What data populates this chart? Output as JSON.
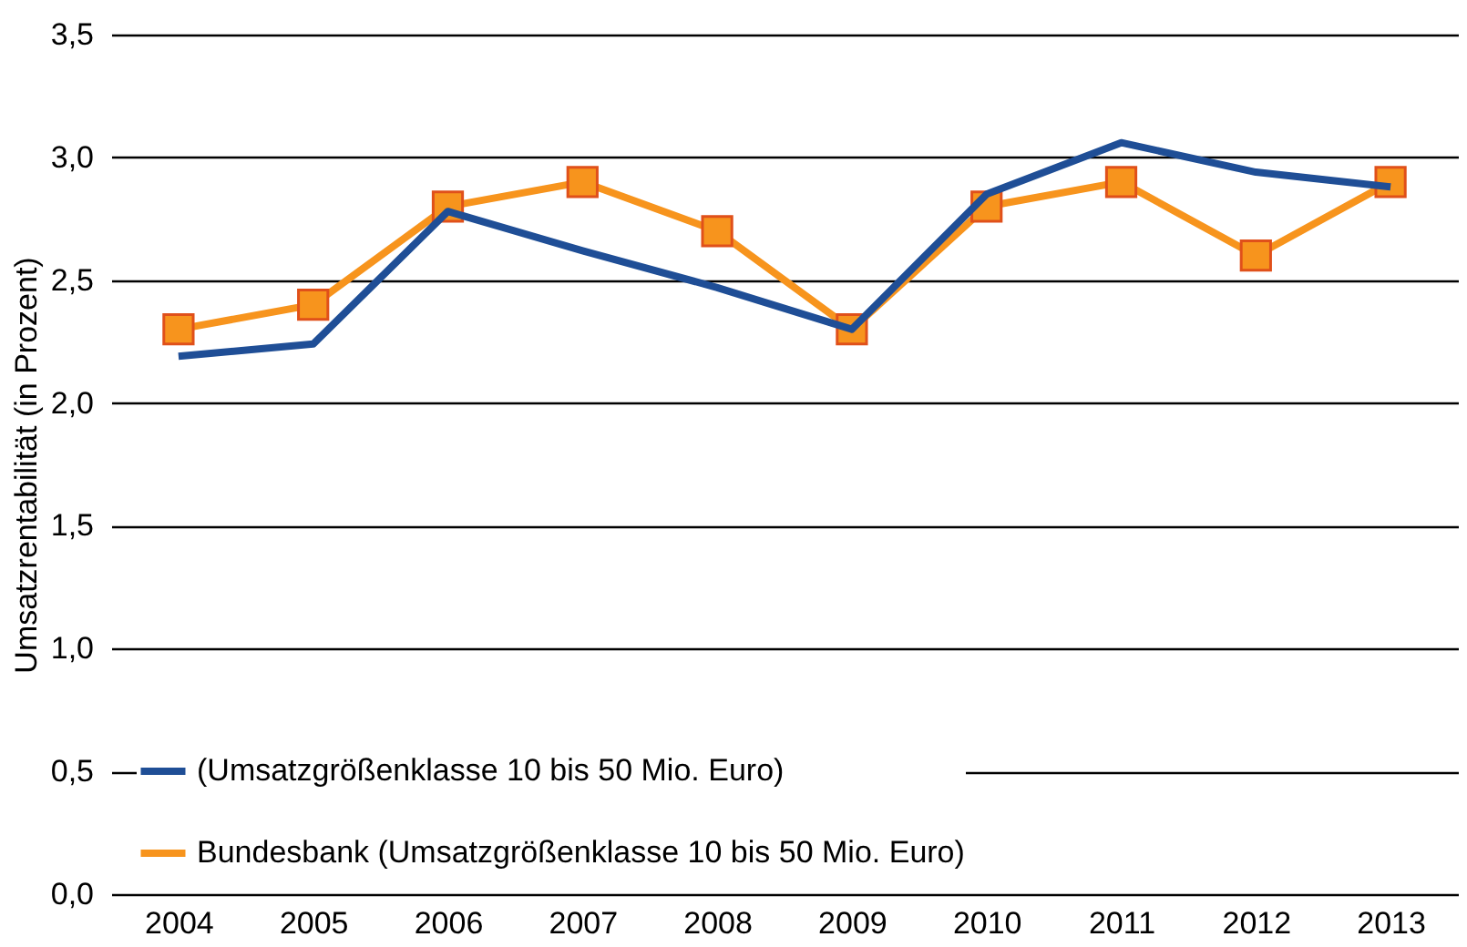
{
  "chart_data": {
    "type": "line",
    "ylabel": "Umsatzrentabilität (in Prozent)",
    "categories": [
      "2004",
      "2005",
      "2006",
      "2007",
      "2008",
      "2009",
      "2010",
      "2011",
      "2012",
      "2013"
    ],
    "series": [
      {
        "name": "(Umsatzgrößenklasse 10 bis 50 Mio. Euro)",
        "color": "#1f4e96",
        "marker": "none",
        "values": [
          2.19,
          2.24,
          2.78,
          2.62,
          2.47,
          2.3,
          2.85,
          3.06,
          2.94,
          2.88
        ]
      },
      {
        "name": "Bundesbank (Umsatzgrößenklasse 10 bis 50 Mio. Euro)",
        "color": "#f7941d",
        "marker": "square",
        "values": [
          2.3,
          2.4,
          2.8,
          2.9,
          2.7,
          2.3,
          2.8,
          2.9,
          2.6,
          2.9
        ]
      }
    ],
    "ylim": [
      0,
      3.5
    ],
    "yticks": [
      {
        "value": 0,
        "label": "0,0"
      },
      {
        "value": 0.5,
        "label": "0,5"
      },
      {
        "value": 1,
        "label": "1,0"
      },
      {
        "value": 1.5,
        "label": "1,5"
      },
      {
        "value": 2,
        "label": "2,0"
      },
      {
        "value": 2.5,
        "label": "2,5"
      },
      {
        "value": 3,
        "label": "3,0"
      },
      {
        "value": 3.5,
        "label": "3,5"
      }
    ],
    "grid": "y",
    "legend": "bottom left",
    "line_style": "solid"
  }
}
